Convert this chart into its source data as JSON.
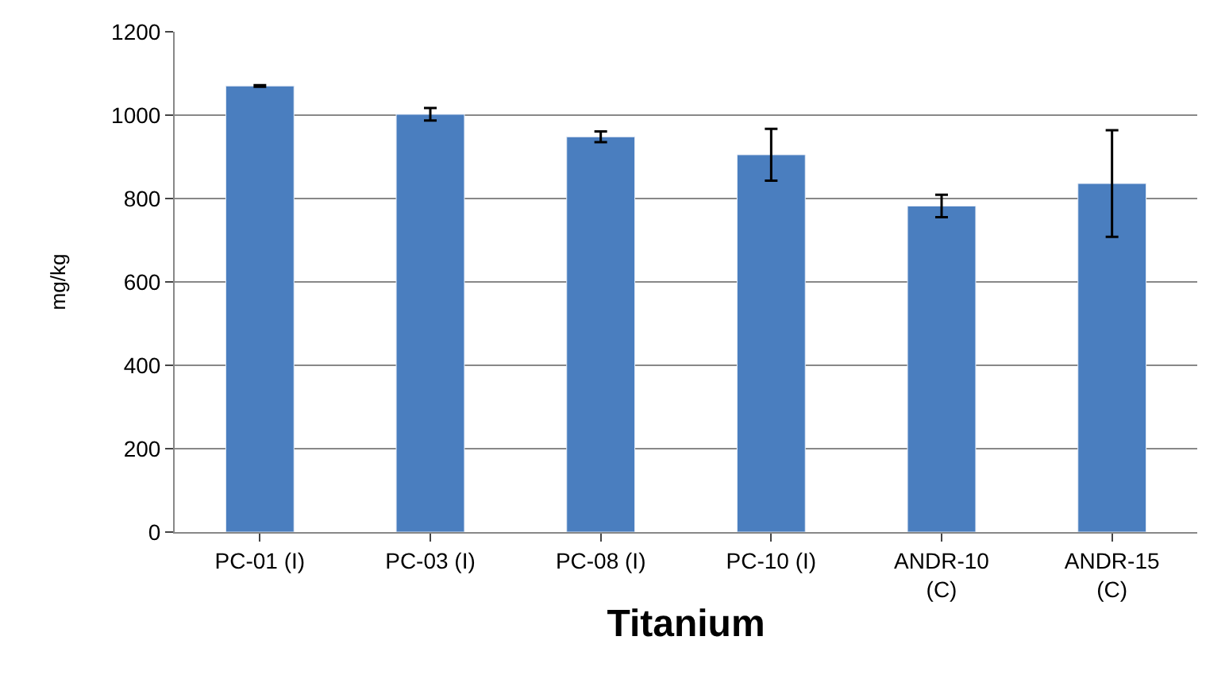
{
  "chart_data": {
    "type": "bar",
    "xlabel": "Titanium",
    "ylabel": "mg/kg",
    "categories": [
      "PC-01 (I)",
      "PC-03 (I)",
      "PC-08 (I)",
      "PC-10 (I)",
      "ANDR-10\n(C)",
      "ANDR-15\n(C)"
    ],
    "values": [
      1070,
      1002,
      948,
      905,
      782,
      836
    ],
    "errors": [
      2,
      15,
      13,
      62,
      27,
      128
    ],
    "color": "#4a7ebf",
    "ylim": [
      0,
      1200
    ],
    "yticks": [
      0,
      200,
      400,
      600,
      800,
      1000,
      1200
    ],
    "grid": "y"
  }
}
